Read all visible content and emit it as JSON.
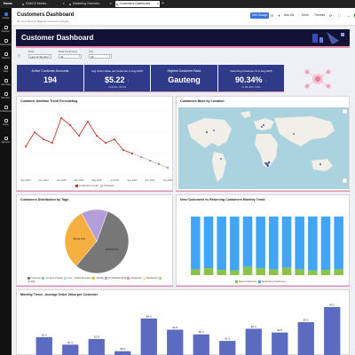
{
  "topbar": {
    "home_label": "Home",
    "tabs": [
      {
        "label": "ICM/CE Monito..."
      },
      {
        "label": "Marketing Overview"
      },
      {
        "label": "Customers Dashboard"
      }
    ]
  },
  "leftnav": {
    "items": [
      {
        "label": "Create"
      },
      {
        "label": "Explore"
      },
      {
        "label": "Dashboards"
      },
      {
        "label": "Reports"
      },
      {
        "label": "Data"
      },
      {
        "label": "Ask Data"
      },
      {
        "label": "Web Ext."
      },
      {
        "label": "Collections"
      },
      {
        "label": "More"
      }
    ],
    "bottom_label": "Recents"
  },
  "header": {
    "title": "Customers Dashboard",
    "subtitle": "No more filters on Magento Customers Insights",
    "buttons": {
      "edit": "Edit Design",
      "ask": "Ask Zia",
      "more": "More",
      "themes": "Themes"
    },
    "avatar_initial": "G"
  },
  "banner": {
    "title": "Customer Dashboard"
  },
  "filters": [
    {
      "label": "Date",
      "value": "Last 12 Months"
    },
    {
      "label": "Data Freshness",
      "value": "All"
    },
    {
      "label": "City",
      "value": "All"
    }
  ],
  "kpis": [
    {
      "label": "Active Customer Accounts",
      "value": "194",
      "sub": ""
    },
    {
      "label": "Avg Order Value per Customer in Aug 2025",
      "value": "$5.22",
      "sub": "vs $4.01, 30.2%"
    },
    {
      "label": "Highest Customer Base",
      "value": "Gauteng",
      "sub": ""
    },
    {
      "label": "Returning Customer % in Aug 2025",
      "value": "90.34%",
      "sub": "vs 89.41%, 0.9%"
    }
  ],
  "colors": {
    "kpi_bg": "#2f3a88",
    "banner_bg": "#111236",
    "accent_line": "#e88aa8",
    "line_series": "#c0392b",
    "forecast": "#7f8c9a",
    "new_customers": "#8bc34a",
    "returning": "#42a5f5",
    "bar": "#5c6bc0"
  },
  "cards": {
    "trend_title": "Customer Addition Trend Forecasting",
    "location_title": "Customers Base by Location",
    "tags_title": "Customers Distribution by Tags",
    "new_vs_returning_title": "New Customers vs Returning Customers Monthly Trend",
    "aov_title": "Monthly Trend - Average Order Value per Customer"
  },
  "chart_data": [
    {
      "type": "line",
      "title": "Customer Addition Trend Forecasting",
      "x": [
        "Sep 2024",
        "Oct 2024",
        "Nov 2024",
        "Dec 2024",
        "Jan 2025",
        "Feb 2025",
        "Mar 2025",
        "Apr 2025",
        "May 2025",
        "Jun 2025",
        "Jul 2025",
        "Aug 2025",
        "Sep 2025",
        "Oct 2025",
        "Nov 2025",
        "Dec 2025",
        "Jan 2026"
      ],
      "series": [
        {
          "name": "Customers Count",
          "values": [
            8,
            12,
            10,
            9,
            16,
            14,
            11,
            15,
            11,
            9,
            10,
            7,
            6,
            null,
            null,
            null,
            null
          ]
        },
        {
          "name": "Forecast",
          "values": [
            null,
            null,
            null,
            null,
            null,
            null,
            null,
            null,
            null,
            null,
            null,
            null,
            6,
            5,
            4,
            3,
            2
          ]
        }
      ],
      "x_tick_labels": [
        "Sep 2024",
        "Nov 2024",
        "Jan 2025",
        "Mar 2025",
        "May 2025",
        "Jul 2025",
        "Sep 2025",
        "Nov 2025",
        "Jan 2026"
      ],
      "ylim": [
        0,
        18
      ]
    },
    {
      "type": "pie",
      "title": "Customers Distribution by Tags",
      "slices": [
        {
          "label": "Unknown",
          "value": 55.5
        },
        {
          "label": "Loyalty",
          "value": 31.1
        },
        {
          "label": "Other",
          "value": 13.4
        }
      ],
      "slice_labels": [
        "118(55.5%)",
        "66(31.1%)"
      ],
      "legend": [
        "Unknown",
        "Content Creator",
        "Low - Drafts Reviewer",
        "Quality",
        "NYHSDiplo2019",
        "newsletter",
        "Newsletter",
        "Quality"
      ]
    },
    {
      "type": "bar",
      "stacked": true,
      "title": "New Customers vs Returning Customers Monthly Trend",
      "categories": [
        "Sep 2024",
        "Oct 2024",
        "Nov 2024",
        "Dec 2024",
        "Jan 2025",
        "Feb 2025",
        "Mar 2025",
        "Apr 2025",
        "May 2025",
        "Jun 2025",
        "Jul 2025",
        "Aug 2025"
      ],
      "series": [
        {
          "name": "New Customers",
          "values": [
            10,
            12,
            9,
            8,
            14,
            12,
            10,
            13,
            10,
            8,
            9,
            10
          ]
        },
        {
          "name": "Returning Customers",
          "values": [
            90,
            88,
            91,
            92,
            86,
            88,
            90,
            87,
            90,
            92,
            91,
            90
          ]
        }
      ],
      "ylim": [
        0,
        100
      ]
    },
    {
      "type": "bar",
      "title": "Monthly Trend - Average Order Value per Customer",
      "categories": [
        "Sep 2024",
        "Oct 2024",
        "Nov 2024",
        "Dec 2024",
        "Jan 2025",
        "Feb 2025",
        "Mar 2025",
        "Apr 2025",
        "May 2025",
        "Jun 2025",
        "Jul 2025",
        "Aug 2025"
      ],
      "values": [
        2.0,
        1.2,
        1.8,
        0.5,
        4.0,
        2.8,
        2.3,
        1.6,
        2.9,
        2.5,
        3.6,
        5.22
      ],
      "data_labels": [
        "$2.0",
        "$1.2",
        "$1.8",
        "$0.5",
        "$4.0",
        "$2.8",
        "$2.3",
        "$1.6",
        "$2.9",
        "$2.5",
        "$3.6",
        "$5.2"
      ],
      "ylim": [
        0,
        5.5
      ]
    }
  ]
}
